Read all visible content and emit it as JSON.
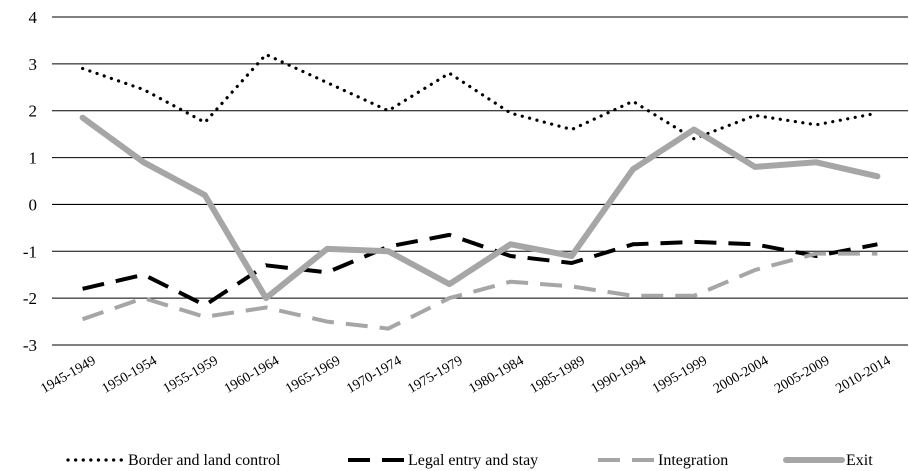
{
  "chart_data": {
    "type": "line",
    "title": "",
    "xlabel": "",
    "ylabel": "",
    "ylim": [
      -3,
      4
    ],
    "yticks": [
      4,
      3,
      2,
      1,
      0,
      -1,
      -2,
      -3
    ],
    "grid": "horizontal",
    "legend_position": "bottom",
    "categories": [
      "1945-1949",
      "1950-1954",
      "1955-1959",
      "1960-1964",
      "1965-1969",
      "1970-1974",
      "1975-1979",
      "1980-1984",
      "1985-1989",
      "1990-1994",
      "1995-1999",
      "2000-2004",
      "2005-2009",
      "2010-2014"
    ],
    "series": [
      {
        "name": "Border and land control",
        "style": "dotted",
        "color": "#000000",
        "values": [
          2.9,
          2.45,
          1.75,
          3.2,
          2.6,
          2.0,
          2.8,
          1.95,
          1.6,
          2.2,
          1.4,
          1.9,
          1.7,
          1.95
        ]
      },
      {
        "name": "Legal entry and stay",
        "style": "dashed",
        "color": "#000000",
        "values": [
          -1.8,
          -1.5,
          -2.15,
          -1.3,
          -1.45,
          -0.9,
          -0.65,
          -1.1,
          -1.25,
          -0.85,
          -0.8,
          -0.85,
          -1.1,
          -0.85
        ]
      },
      {
        "name": "Integration",
        "style": "dashed",
        "color": "#a6a6a6",
        "values": [
          -2.45,
          -2.0,
          -2.4,
          -2.2,
          -2.5,
          -2.65,
          -2.0,
          -1.65,
          -1.75,
          -1.95,
          -1.95,
          -1.4,
          -1.05,
          -1.05
        ]
      },
      {
        "name": "Exit",
        "style": "solid",
        "color": "#a6a6a6",
        "values": [
          1.85,
          0.9,
          0.2,
          -2.0,
          -0.95,
          -1.0,
          -1.7,
          -0.85,
          -1.1,
          0.75,
          1.6,
          0.8,
          0.9,
          0.6
        ]
      }
    ]
  }
}
